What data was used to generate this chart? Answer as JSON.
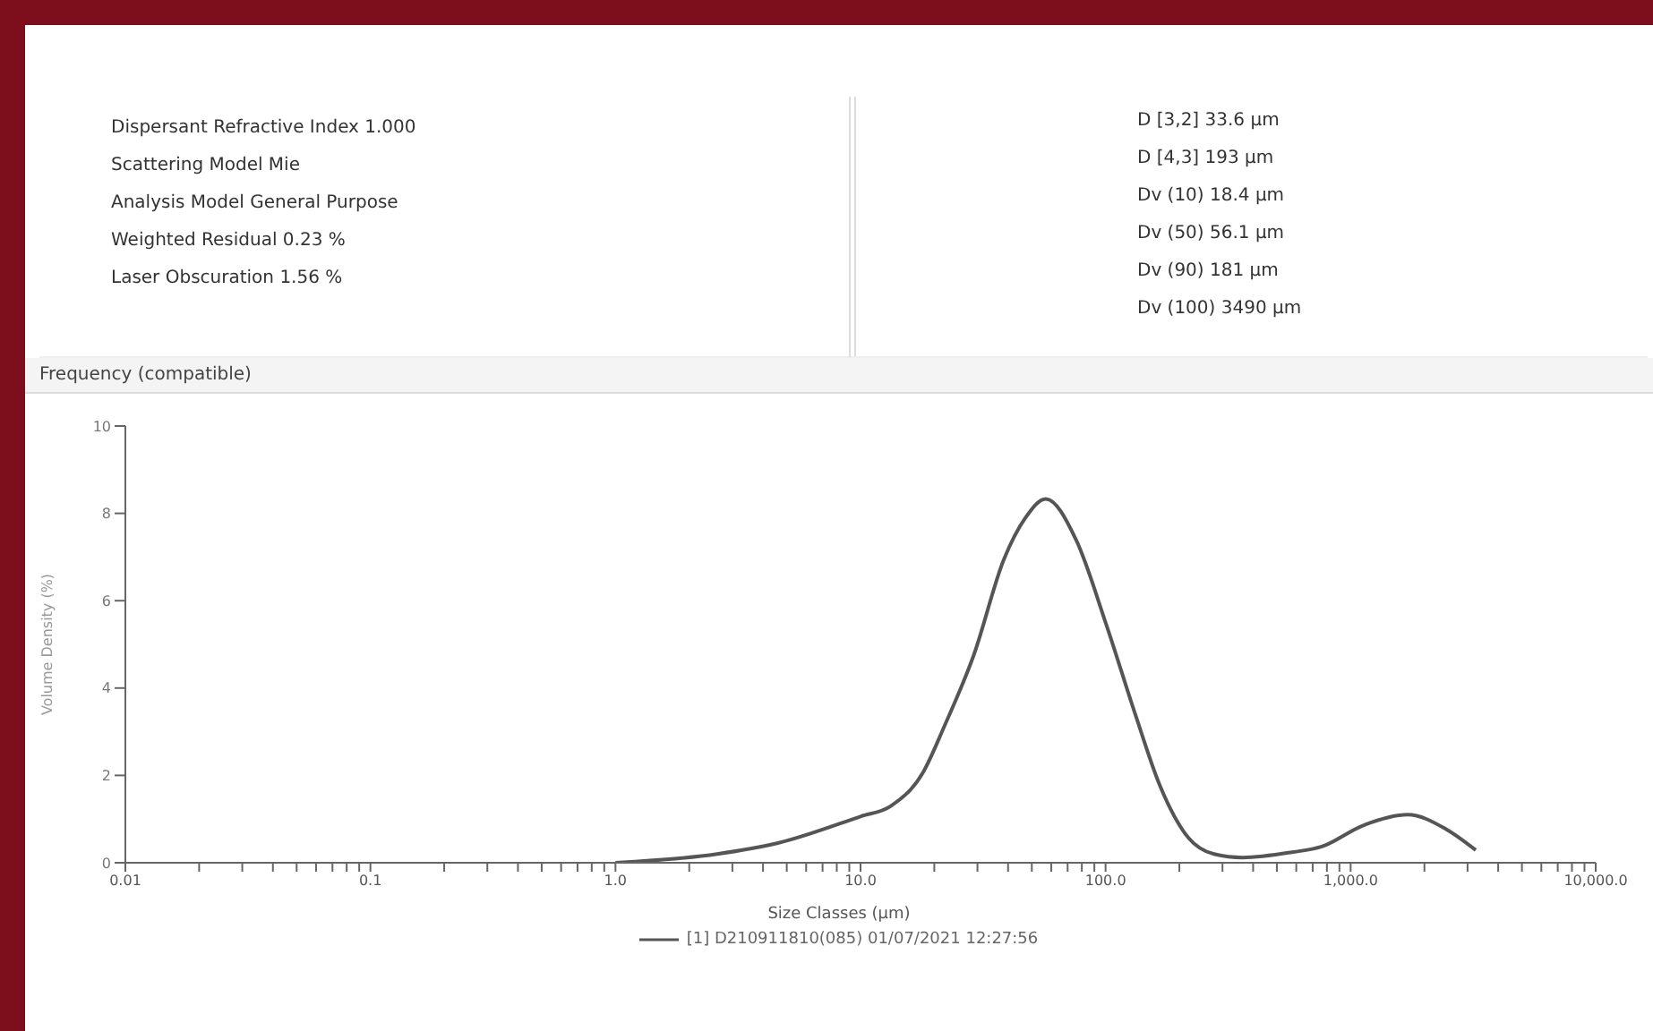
{
  "chart_data": {
    "type": "line",
    "title": "Frequency (compatible)",
    "annotations": [
      "Dispersant Refractive Index 1.000",
      "Scattering Model Mie",
      "Analysis Model General Purpose",
      "Weighted Residual 0.23 %",
      "Laser Obscuration 1.56 %",
      "D [3,2] 33.6 µm",
      "D [4,3] 193 µm",
      "Dv (10) 18.4 µm",
      "Dv (50) 56.1 µm",
      "Dv (90) 181 µm",
      "Dv (100) 3490 µm"
    ],
    "xlabel": "Size Classes (µm)",
    "ylabel": "Volume Density (%)",
    "series": [
      {
        "name": "[1] D210911810(085) 01/07/2021 12:27:56",
        "color": "#555555",
        "x": [
          1.0,
          2.6,
          4.6,
          10,
          13.3,
          18,
          22,
          29,
          38.5,
          47,
          57,
          75.7,
          100.7,
          132,
          166,
          218,
          277,
          363,
          575,
          763,
          1120,
          1710,
          2450,
          3240
        ],
        "values": [
          0,
          0.2,
          0.45,
          1.06,
          1.3,
          2.07,
          3.13,
          4.76,
          6.95,
          7.89,
          8.33,
          7.4,
          5.45,
          3.41,
          1.79,
          0.57,
          0.2,
          0.12,
          0.24,
          0.37,
          0.85,
          1.1,
          0.77,
          0.29
        ]
      }
    ],
    "log": "x",
    "xlim": [
      0.01,
      10000
    ],
    "xticks": [
      {
        "value": 0.01,
        "label": "0.01"
      },
      {
        "value": 0.02,
        "label": null
      },
      {
        "value": 0.03,
        "label": null
      },
      {
        "value": 0.04,
        "label": null
      },
      {
        "value": 0.05,
        "label": null
      },
      {
        "value": 0.06,
        "label": null
      },
      {
        "value": 0.07,
        "label": null
      },
      {
        "value": 0.08,
        "label": null
      },
      {
        "value": 0.09,
        "label": null
      },
      {
        "value": 0.1,
        "label": "0.1"
      },
      {
        "value": 0.2,
        "label": null
      },
      {
        "value": 0.3,
        "label": null
      },
      {
        "value": 0.4,
        "label": null
      },
      {
        "value": 0.5,
        "label": null
      },
      {
        "value": 0.6,
        "label": null
      },
      {
        "value": 0.7,
        "label": null
      },
      {
        "value": 0.8,
        "label": null
      },
      {
        "value": 0.9,
        "label": null
      },
      {
        "value": 1,
        "label": "1.0"
      },
      {
        "value": 2,
        "label": null
      },
      {
        "value": 3,
        "label": null
      },
      {
        "value": 4,
        "label": null
      },
      {
        "value": 5,
        "label": null
      },
      {
        "value": 6,
        "label": null
      },
      {
        "value": 7,
        "label": null
      },
      {
        "value": 8,
        "label": null
      },
      {
        "value": 9,
        "label": null
      },
      {
        "value": 10,
        "label": "10.0"
      },
      {
        "value": 20,
        "label": null
      },
      {
        "value": 30,
        "label": null
      },
      {
        "value": 40,
        "label": null
      },
      {
        "value": 50,
        "label": null
      },
      {
        "value": 60,
        "label": null
      },
      {
        "value": 70,
        "label": null
      },
      {
        "value": 80,
        "label": null
      },
      {
        "value": 90,
        "label": null
      },
      {
        "value": 100,
        "label": "100.0"
      },
      {
        "value": 200,
        "label": null
      },
      {
        "value": 300,
        "label": null
      },
      {
        "value": 400,
        "label": null
      },
      {
        "value": 500,
        "label": null
      },
      {
        "value": 600,
        "label": null
      },
      {
        "value": 700,
        "label": null
      },
      {
        "value": 800,
        "label": null
      },
      {
        "value": 900,
        "label": null
      },
      {
        "value": 1000,
        "label": "1,000.0"
      },
      {
        "value": 2000,
        "label": null
      },
      {
        "value": 3000,
        "label": null
      },
      {
        "value": 4000,
        "label": null
      },
      {
        "value": 5000,
        "label": null
      },
      {
        "value": 6000,
        "label": null
      },
      {
        "value": 7000,
        "label": null
      },
      {
        "value": 8000,
        "label": null
      },
      {
        "value": 9000,
        "label": null
      },
      {
        "value": 10000,
        "label": "10,000.0"
      }
    ],
    "ylim": [
      0,
      10
    ],
    "yticks": [
      0,
      2,
      4,
      6,
      8,
      10
    ],
    "grid": false,
    "legend": "bottom",
    "marker": "none",
    "line_style": "solid"
  }
}
